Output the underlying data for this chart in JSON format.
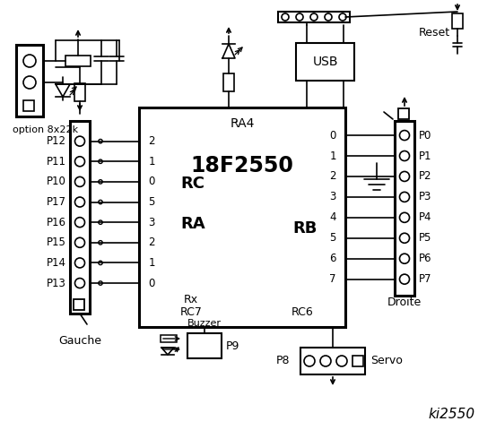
{
  "title": "ki2550",
  "bg_color": "#ffffff",
  "fg_color": "#000000",
  "chip_label": "18F2550",
  "chip_sublabel": "RA4",
  "left_connector_labels": [
    "P12",
    "P11",
    "P10",
    "P17",
    "P16",
    "P15",
    "P14",
    "P13"
  ],
  "right_connector_labels": [
    "P0",
    "P1",
    "P2",
    "P3",
    "P4",
    "P5",
    "P6",
    "P7"
  ],
  "left_port_labels": [
    "2",
    "1",
    "0",
    "5",
    "3",
    "2",
    "1",
    "0"
  ],
  "right_port_labels": [
    "0",
    "1",
    "2",
    "3",
    "4",
    "5",
    "6",
    "7"
  ],
  "left_section_label": "RC",
  "left_section_label2": "RA",
  "right_section_label": "RB",
  "bottom_left_labels": [
    "Rx",
    "RC7"
  ],
  "bottom_right_label": "RC6",
  "bottom_connector_labels": [
    "P9",
    "P8"
  ],
  "component_labels": [
    "Buzzer",
    "Servo",
    "USB",
    "Reset",
    "Gauche",
    "Droite",
    "option 8x22k"
  ]
}
